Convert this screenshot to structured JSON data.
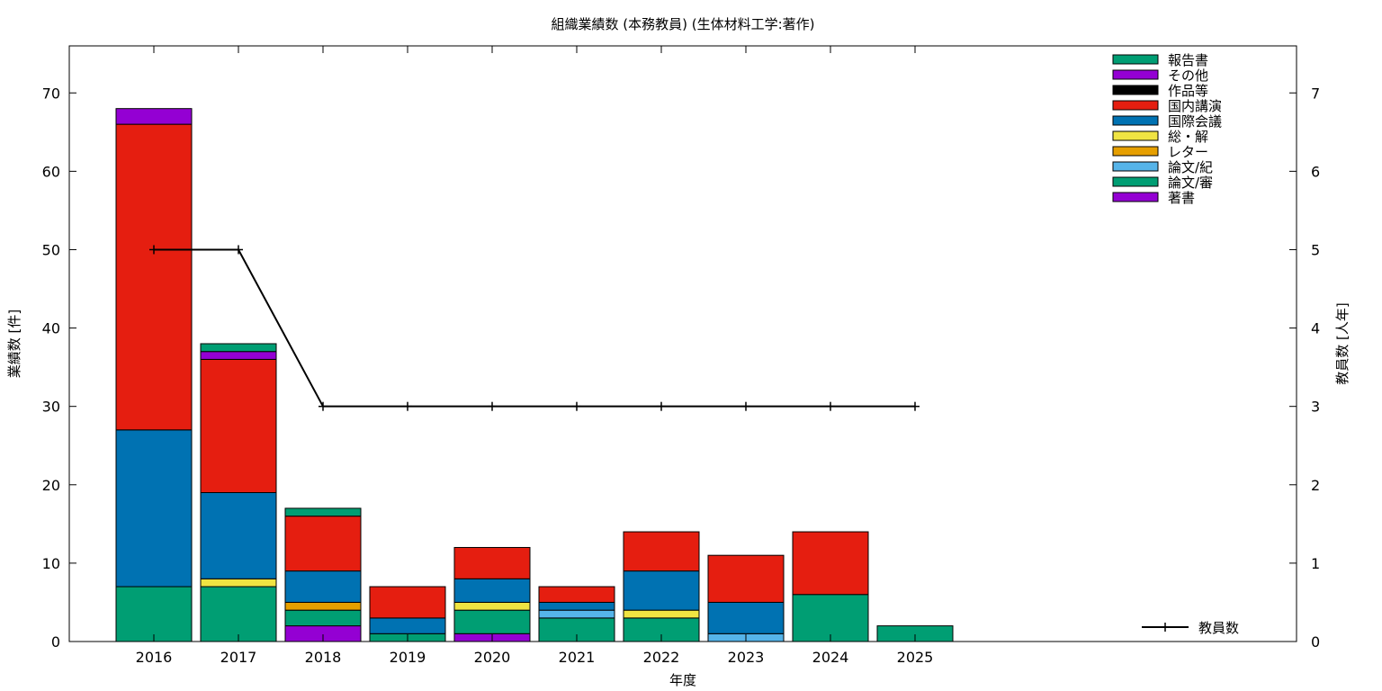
{
  "chart_data": {
    "type": "bar",
    "stacked": true,
    "title": "組織業績数 (本務教員) (生体材料工学:著作)",
    "xlabel": "年度",
    "ylabel": "業績数 [件]",
    "y2label": "教員数 [人年]",
    "categories": [
      "2016",
      "2017",
      "2018",
      "2019",
      "2020",
      "2021",
      "2022",
      "2023",
      "2024",
      "2025"
    ],
    "ylim": [
      0,
      76
    ],
    "y2lim": [
      0,
      7.6
    ],
    "yticks": [
      0,
      10,
      20,
      30,
      40,
      50,
      60,
      70
    ],
    "y2ticks": [
      0,
      1,
      2,
      3,
      4,
      5,
      6,
      7
    ],
    "grid": false,
    "legend_position": "top-right",
    "series": [
      {
        "name": "著書",
        "color": "#9400d3",
        "values": [
          0,
          0,
          2,
          0,
          1,
          0,
          0,
          0,
          0,
          0
        ]
      },
      {
        "name": "論文/審",
        "color": "#009e73",
        "values": [
          7,
          7,
          2,
          1,
          3,
          3,
          3,
          0,
          6,
          2
        ]
      },
      {
        "name": "論文/紀",
        "color": "#56b4e9",
        "values": [
          0,
          0,
          0,
          0,
          0,
          1,
          0,
          1,
          0,
          0
        ]
      },
      {
        "name": "レター",
        "color": "#e69f00",
        "values": [
          0,
          0,
          1,
          0,
          0,
          0,
          0,
          0,
          0,
          0
        ]
      },
      {
        "name": "総・解",
        "color": "#f0e442",
        "values": [
          0,
          1,
          0,
          0,
          1,
          0,
          1,
          0,
          0,
          0
        ]
      },
      {
        "name": "国際会議",
        "color": "#0072b2",
        "values": [
          20,
          11,
          4,
          2,
          3,
          1,
          5,
          4,
          0,
          0
        ]
      },
      {
        "name": "国内講演",
        "color": "#e51e10",
        "values": [
          39,
          17,
          7,
          4,
          4,
          2,
          5,
          6,
          8,
          0
        ]
      },
      {
        "name": "作品等",
        "color": "#000000",
        "values": [
          0,
          0,
          0,
          0,
          0,
          0,
          0,
          0,
          0,
          0
        ]
      },
      {
        "name": "その他",
        "color": "#9400d3",
        "values": [
          2,
          1,
          0,
          0,
          0,
          0,
          0,
          0,
          0,
          0
        ]
      },
      {
        "name": "報告書",
        "color": "#009e73",
        "values": [
          0,
          1,
          1,
          0,
          0,
          0,
          0,
          0,
          0,
          0
        ]
      }
    ],
    "legend_order": [
      "報告書",
      "その他",
      "作品等",
      "国内講演",
      "国際会議",
      "総・解",
      "レター",
      "論文/紀",
      "論文/審",
      "著書"
    ],
    "line_series": {
      "name": "教員数",
      "axis": "y2",
      "color": "#000000",
      "values": [
        5,
        5,
        3,
        3,
        3,
        3,
        3,
        3,
        3,
        3
      ]
    }
  }
}
